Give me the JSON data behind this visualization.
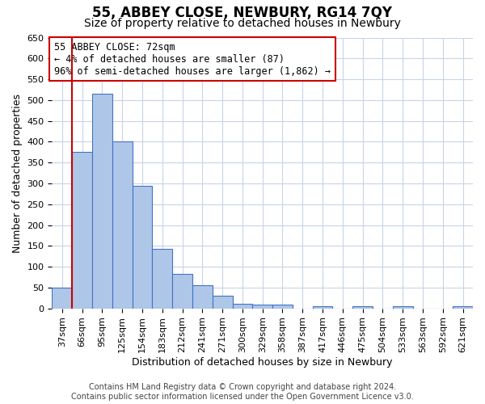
{
  "title": "55, ABBEY CLOSE, NEWBURY, RG14 7QY",
  "subtitle": "Size of property relative to detached houses in Newbury",
  "xlabel": "Distribution of detached houses by size in Newbury",
  "ylabel": "Number of detached properties",
  "categories": [
    "37sqm",
    "66sqm",
    "95sqm",
    "125sqm",
    "154sqm",
    "183sqm",
    "212sqm",
    "241sqm",
    "271sqm",
    "300sqm",
    "329sqm",
    "358sqm",
    "387sqm",
    "417sqm",
    "446sqm",
    "475sqm",
    "504sqm",
    "533sqm",
    "563sqm",
    "592sqm",
    "621sqm"
  ],
  "values": [
    50,
    375,
    515,
    400,
    295,
    143,
    82,
    55,
    30,
    12,
    10,
    10,
    0,
    5,
    0,
    5,
    0,
    5,
    0,
    0,
    5
  ],
  "bar_color": "#aec6e8",
  "bar_edge_color": "#4472c4",
  "redline_x": 0.5,
  "highlight_color": "#cc0000",
  "ylim_min": 0,
  "ylim_max": 650,
  "yticks": [
    0,
    50,
    100,
    150,
    200,
    250,
    300,
    350,
    400,
    450,
    500,
    550,
    600,
    650
  ],
  "annotation_line1": "55 ABBEY CLOSE: 72sqm",
  "annotation_line2": "← 4% of detached houses are smaller (87)",
  "annotation_line3": "96% of semi-detached houses are larger (1,862) →",
  "footer_line1": "Contains HM Land Registry data © Crown copyright and database right 2024.",
  "footer_line2": "Contains public sector information licensed under the Open Government Licence v3.0.",
  "bg_color": "#ffffff",
  "grid_color": "#c8d4e8",
  "title_fontsize": 12,
  "subtitle_fontsize": 10,
  "ylabel_fontsize": 9,
  "xlabel_fontsize": 9,
  "tick_fontsize": 8,
  "ann_fontsize": 8.5,
  "footer_fontsize": 7
}
